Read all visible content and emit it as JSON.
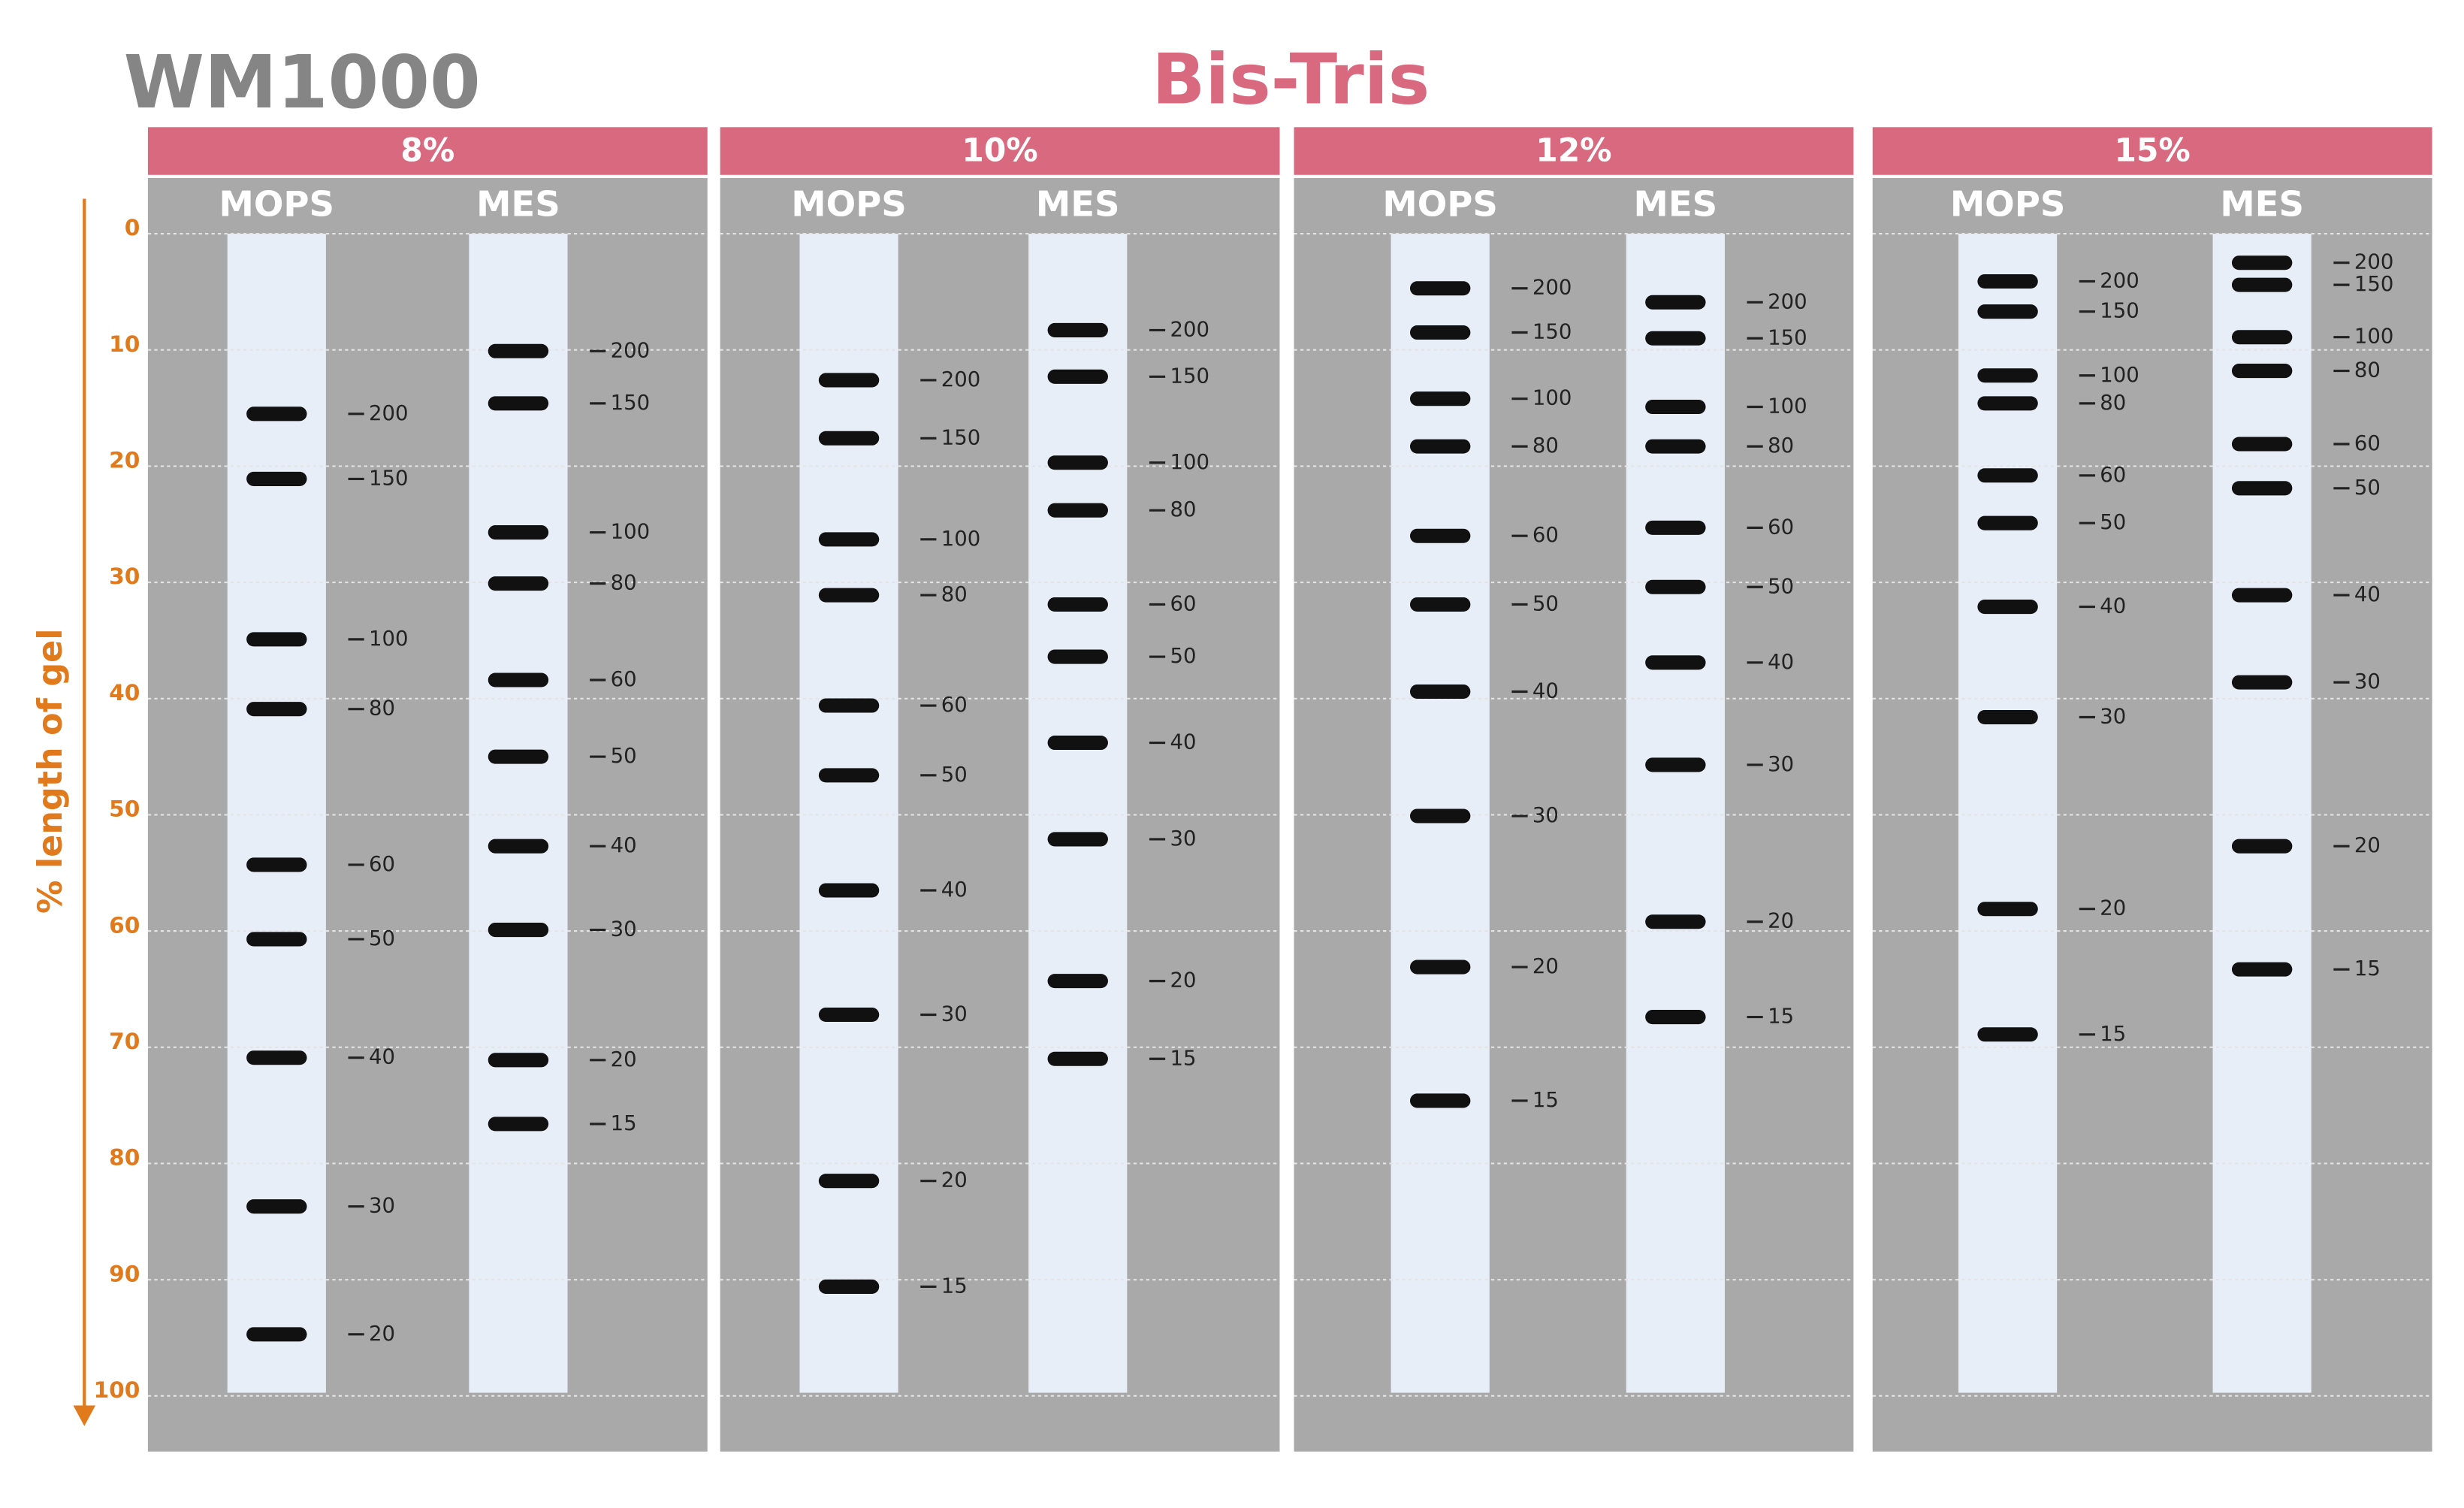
{
  "chart_data": {
    "type": "gel",
    "brand": "WM1000",
    "title": "Bis-Tris",
    "y_label": "% length of gel",
    "ylim": [
      0,
      100
    ],
    "yticks": [
      0,
      10,
      20,
      30,
      40,
      50,
      60,
      70,
      80,
      90,
      100
    ],
    "grid": true,
    "header_color": "#d9697f",
    "background_color": "#a9a9a9",
    "lane_color": "#e8eef8",
    "band_color": "#111111",
    "axis_color": "#e07a1c",
    "gels": [
      {
        "name": "8%",
        "lanes": [
          {
            "name": "MOPS",
            "sizes": [
              200,
              150,
              100,
              80,
              60,
              50,
              40,
              30,
              20
            ],
            "values": [
              15.5,
              21.1,
              34.9,
              40.9,
              54.3,
              60.7,
              70.9,
              83.7,
              94.7
            ]
          },
          {
            "name": "MES",
            "sizes": [
              200,
              150,
              100,
              80,
              60,
              50,
              40,
              30,
              20,
              15
            ],
            "values": [
              10.1,
              14.6,
              25.7,
              30.1,
              38.4,
              45.0,
              52.7,
              59.9,
              71.1,
              76.6
            ]
          }
        ]
      },
      {
        "name": "10%",
        "lanes": [
          {
            "name": "MOPS",
            "sizes": [
              200,
              150,
              100,
              80,
              60,
              50,
              40,
              30,
              20,
              15
            ],
            "values": [
              12.6,
              17.6,
              26.3,
              31.1,
              40.6,
              46.6,
              56.5,
              67.2,
              81.5,
              90.6
            ]
          },
          {
            "name": "MES",
            "sizes": [
              200,
              150,
              100,
              80,
              60,
              50,
              40,
              30,
              20,
              15
            ],
            "values": [
              8.3,
              12.3,
              19.7,
              23.8,
              31.9,
              36.4,
              43.8,
              52.1,
              64.3,
              71.0
            ]
          }
        ]
      },
      {
        "name": "12%",
        "lanes": [
          {
            "name": "MOPS",
            "sizes": [
              200,
              150,
              100,
              80,
              60,
              50,
              40,
              30,
              20,
              15
            ],
            "values": [
              4.7,
              8.5,
              14.2,
              18.3,
              26.0,
              31.9,
              39.4,
              50.1,
              63.1,
              74.6
            ]
          },
          {
            "name": "MES",
            "sizes": [
              200,
              150,
              100,
              80,
              60,
              50,
              40,
              30,
              20,
              15
            ],
            "values": [
              5.9,
              9.0,
              14.9,
              18.3,
              25.3,
              30.4,
              36.9,
              45.7,
              59.2,
              67.4
            ]
          }
        ]
      },
      {
        "name": "15%",
        "lanes": [
          {
            "name": "MOPS",
            "sizes": [
              200,
              150,
              100,
              80,
              60,
              50,
              40,
              30,
              20,
              15
            ],
            "values": [
              4.1,
              6.7,
              12.2,
              14.6,
              20.8,
              24.9,
              32.1,
              41.6,
              58.1,
              68.9
            ]
          },
          {
            "name": "MES",
            "sizes": [
              200,
              150,
              100,
              80,
              60,
              50,
              40,
              30,
              20,
              15
            ],
            "values": [
              2.5,
              4.4,
              8.9,
              11.8,
              18.1,
              21.9,
              31.1,
              38.6,
              52.7,
              63.3
            ]
          }
        ]
      }
    ]
  }
}
